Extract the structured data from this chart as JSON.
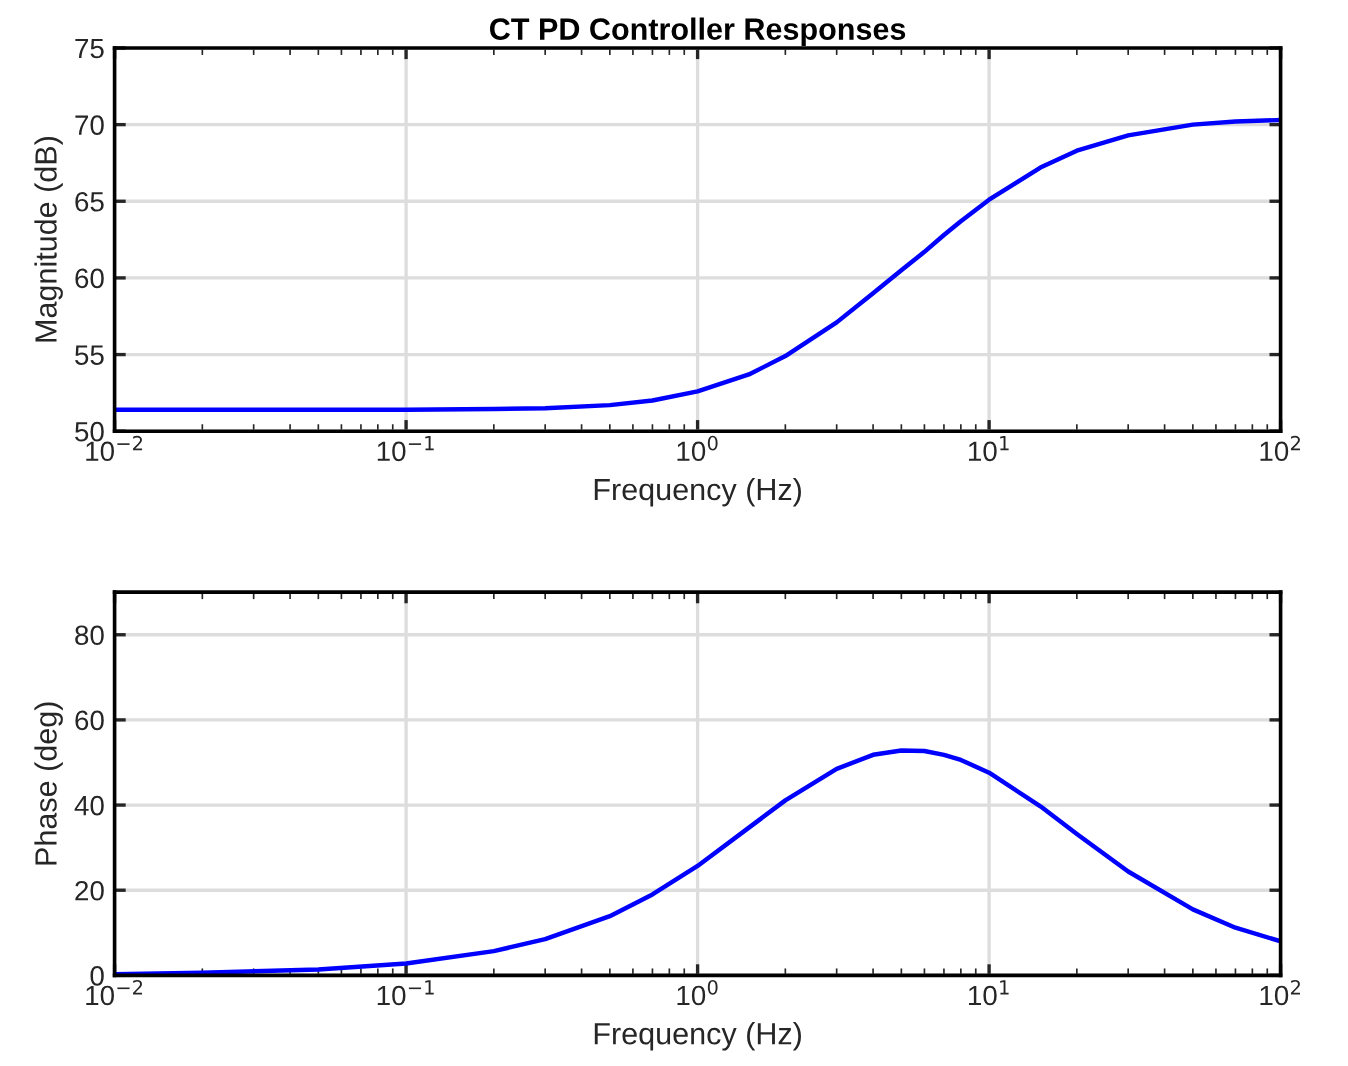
{
  "chart_data": [
    {
      "type": "line",
      "title": "CT PD Controller Responses",
      "xlabel": "Frequency (Hz)",
      "ylabel": "Magnitude (dB)",
      "log": "x",
      "grid": true,
      "xlim": [
        0.01,
        100
      ],
      "ylim": [
        50,
        75
      ],
      "xticks": [
        {
          "value": 0.01,
          "label": "10$^{−2}$"
        },
        {
          "value": 0.1,
          "label": "10$^{−1}$"
        },
        {
          "value": 1,
          "label": "10$^{0}$"
        },
        {
          "value": 10,
          "label": "10$^{1}$"
        },
        {
          "value": 100,
          "label": "10$^{2}$"
        }
      ],
      "yticks": [
        50,
        55,
        60,
        65,
        70,
        75
      ],
      "x": [
        0.01,
        0.02,
        0.05,
        0.1,
        0.2,
        0.3,
        0.5,
        0.7,
        1,
        1.5,
        2,
        3,
        4,
        5,
        6,
        7,
        8,
        10,
        15,
        20,
        30,
        50,
        70,
        100
      ],
      "series": [
        {
          "color": "#0000ff",
          "values": [
            51.4,
            51.4,
            51.4,
            51.4,
            51.45,
            51.5,
            51.7,
            52.0,
            52.6,
            53.7,
            54.9,
            57.1,
            59.0,
            60.5,
            61.7,
            62.8,
            63.7,
            65.1,
            67.2,
            68.3,
            69.3,
            70.0,
            70.2,
            70.3
          ]
        }
      ]
    },
    {
      "type": "line",
      "xlabel": "Frequency (Hz)",
      "ylabel": "Phase (deg)",
      "log": "x",
      "grid": true,
      "xlim": [
        0.01,
        100
      ],
      "ylim": [
        0,
        90
      ],
      "xticks": [
        {
          "value": 0.01,
          "label": "10$^{−2}$"
        },
        {
          "value": 0.1,
          "label": "10$^{−1}$"
        },
        {
          "value": 1,
          "label": "10$^{0}$"
        },
        {
          "value": 10,
          "label": "10$^{1}$"
        },
        {
          "value": 100,
          "label": "10$^{2}$"
        }
      ],
      "yticks": [
        0,
        20,
        40,
        60,
        80
      ],
      "x": [
        0.01,
        0.02,
        0.05,
        0.1,
        0.2,
        0.3,
        0.5,
        0.7,
        1,
        1.5,
        2,
        3,
        4,
        5,
        6,
        7,
        8,
        10,
        15,
        20,
        30,
        50,
        70,
        100
      ],
      "series": [
        {
          "color": "#0000ff",
          "values": [
            0.3,
            0.6,
            1.4,
            2.8,
            5.7,
            8.5,
            13.9,
            19.0,
            25.7,
            34.7,
            41.1,
            48.5,
            51.8,
            52.8,
            52.7,
            51.8,
            50.6,
            47.6,
            39.7,
            33.2,
            24.4,
            15.5,
            11.2,
            8.0
          ]
        }
      ]
    }
  ]
}
